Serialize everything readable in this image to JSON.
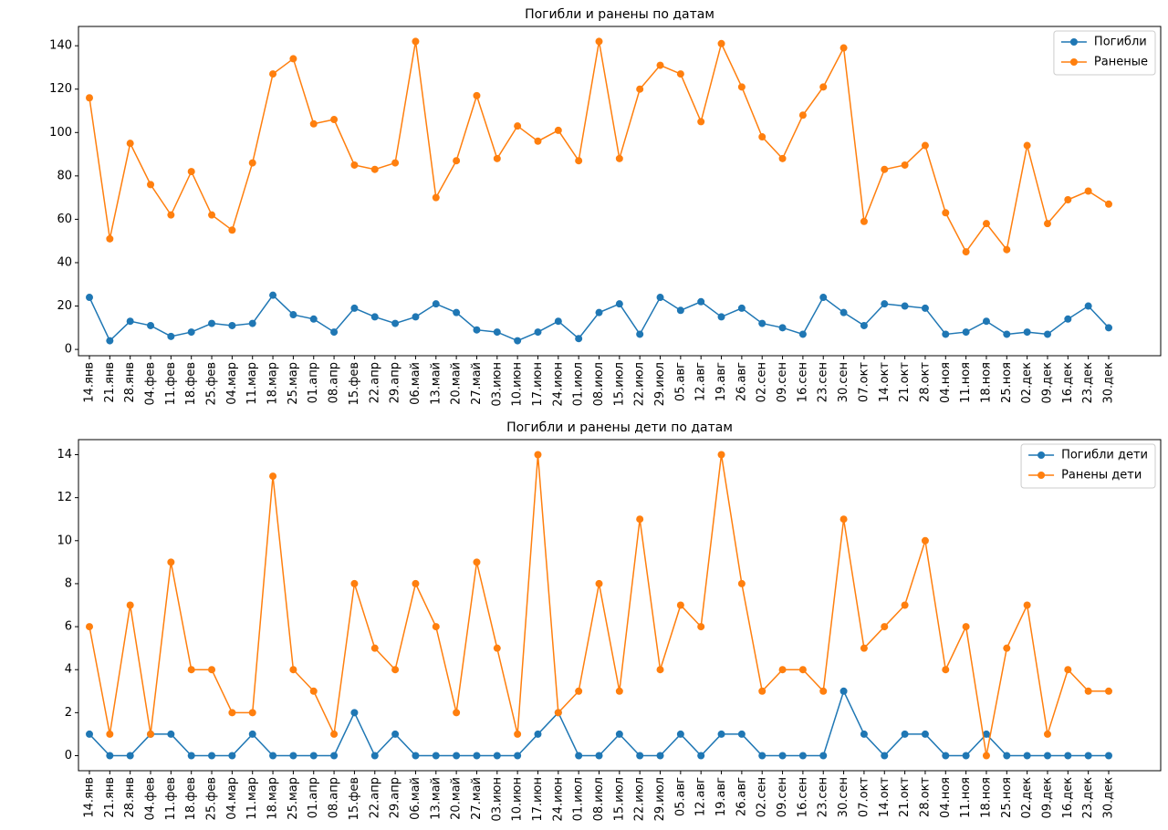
{
  "chart_data": [
    {
      "type": "line",
      "title": "Погибли и ранены по датам",
      "categories": [
        "14.янв",
        "21.янв",
        "28.янв",
        "04.фев",
        "11.фев",
        "18.фев",
        "25.фев",
        "04.мар",
        "11.мар",
        "18.мар",
        "25.мар",
        "01.апр",
        "08.апр",
        "15.фев",
        "22.апр",
        "29.апр",
        "06.май",
        "13.май",
        "20.май",
        "27.май",
        "03.июн",
        "10.июн",
        "17.июн",
        "24.июн",
        "01.июл",
        "08.июл",
        "15.июл",
        "22.июл",
        "29.июл",
        "05.авг",
        "12.авг",
        "19.авг",
        "26.авг",
        "02.сен",
        "09.сен",
        "16.сен",
        "23.сен",
        "30.сен",
        "07.окт",
        "14.окт",
        "21.окт",
        "28.окт",
        "04.ноя",
        "11.ноя",
        "18.ноя",
        "25.ноя",
        "02.дек",
        "09.дек",
        "16.дек",
        "23.дек",
        "30.дек"
      ],
      "series": [
        {
          "name": "Погибли",
          "color": "#1f77b4",
          "values": [
            24,
            4,
            13,
            11,
            6,
            8,
            12,
            11,
            12,
            25,
            16,
            14,
            8,
            19,
            15,
            12,
            15,
            21,
            17,
            9,
            8,
            4,
            8,
            13,
            5,
            17,
            21,
            7,
            24,
            18,
            22,
            15,
            19,
            12,
            10,
            7,
            24,
            17,
            11,
            21,
            20,
            19,
            7,
            8,
            13,
            7,
            8,
            7,
            14,
            20,
            10
          ]
        },
        {
          "name": "Раненые",
          "color": "#ff7f0e",
          "values": [
            116,
            51,
            95,
            76,
            62,
            82,
            62,
            55,
            86,
            127,
            134,
            104,
            106,
            85,
            83,
            86,
            142,
            70,
            87,
            117,
            88,
            103,
            96,
            101,
            87,
            142,
            88,
            120,
            131,
            127,
            105,
            141,
            121,
            98,
            88,
            108,
            121,
            139,
            59,
            83,
            85,
            94,
            63,
            45,
            58,
            46,
            94,
            58,
            69,
            73,
            67
          ]
        }
      ],
      "ylim": [
        -2.9,
        148.9
      ],
      "yticks": [
        0,
        20,
        40,
        60,
        80,
        100,
        120,
        140
      ],
      "legend": "upper right"
    },
    {
      "type": "line",
      "title": "Погибли и ранены дети по датам",
      "categories": [
        "14.янв",
        "21.янв",
        "28.янв",
        "04.фев",
        "11.фев",
        "18.фев",
        "25.фев",
        "04.мар",
        "11.мар",
        "18.мар",
        "25.мар",
        "01.апр",
        "08.апр",
        "15.фев",
        "22.апр",
        "29.апр",
        "06.май",
        "13.май",
        "20.май",
        "27.май",
        "03.июн",
        "10.июн",
        "17.июн",
        "24.июн",
        "01.июл",
        "08.июл",
        "15.июл",
        "22.июл",
        "29.июл",
        "05.авг",
        "12.авг",
        "19.авг",
        "26.авг",
        "02.сен",
        "09.сен",
        "16.сен",
        "23.сен",
        "30.сен",
        "07.окт",
        "14.окт",
        "21.окт",
        "28.окт",
        "04.ноя",
        "11.ноя",
        "18.ноя",
        "25.ноя",
        "02.дек",
        "09.дек",
        "16.дек",
        "23.дек",
        "30.дек"
      ],
      "series": [
        {
          "name": "Погибли дети",
          "color": "#1f77b4",
          "values": [
            1,
            0,
            0,
            1,
            1,
            0,
            0,
            0,
            1,
            0,
            0,
            0,
            0,
            2,
            0,
            1,
            0,
            0,
            0,
            0,
            0,
            0,
            1,
            2,
            0,
            0,
            1,
            0,
            0,
            1,
            0,
            1,
            1,
            0,
            0,
            0,
            0,
            3,
            1,
            0,
            1,
            1,
            0,
            0,
            1,
            0,
            0,
            0,
            0,
            0,
            0
          ]
        },
        {
          "name": "Ранены дети",
          "color": "#ff7f0e",
          "values": [
            6,
            1,
            7,
            1,
            9,
            4,
            4,
            2,
            2,
            13,
            4,
            3,
            1,
            8,
            5,
            4,
            8,
            6,
            2,
            9,
            5,
            1,
            14,
            2,
            3,
            8,
            3,
            11,
            4,
            7,
            6,
            14,
            8,
            3,
            4,
            4,
            3,
            11,
            5,
            6,
            7,
            10,
            4,
            6,
            0,
            5,
            7,
            1,
            4,
            3,
            3
          ]
        }
      ],
      "ylim": [
        -0.7,
        14.7
      ],
      "yticks": [
        0,
        2,
        4,
        6,
        8,
        10,
        12,
        14
      ],
      "legend": "upper right"
    }
  ]
}
